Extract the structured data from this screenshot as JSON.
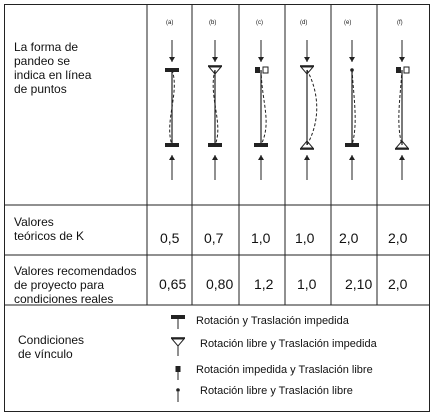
{
  "rows": {
    "buckling": {
      "label_lines": [
        "La forma de",
        "pandeo se",
        "indica en línea",
        "de puntos"
      ]
    },
    "k_theoretical": {
      "label_lines": [
        "Valores",
        "teóricos de K"
      ],
      "values": [
        "0,5",
        "0,7",
        "1,0",
        "1,0",
        "2,0",
        "2,0"
      ]
    },
    "k_recommended": {
      "label_lines": [
        "Valores recomendados",
        "de proyecto para",
        "condiciones reales"
      ],
      "values": [
        "0,65",
        "0,80",
        "1,2",
        "1,0",
        "2,10",
        "2,0"
      ]
    },
    "conditions": {
      "label_lines": [
        "Condiciones",
        "de vínculo"
      ]
    }
  },
  "cases": [
    "(a)",
    "(b)",
    "(c)",
    "(d)",
    "(e)",
    "(f)"
  ],
  "legend": [
    {
      "symbol": "fixed",
      "text": "Rotación y Traslación impedida"
    },
    {
      "symbol": "pinned",
      "text": "Rotación libre y Traslación impedida"
    },
    {
      "symbol": "guided",
      "text": "Rotación impedida y Traslación libre"
    },
    {
      "symbol": "free",
      "text": "Rotación libre y Traslación libre"
    }
  ],
  "colors": {
    "line": "#222222",
    "text": "#111111"
  }
}
